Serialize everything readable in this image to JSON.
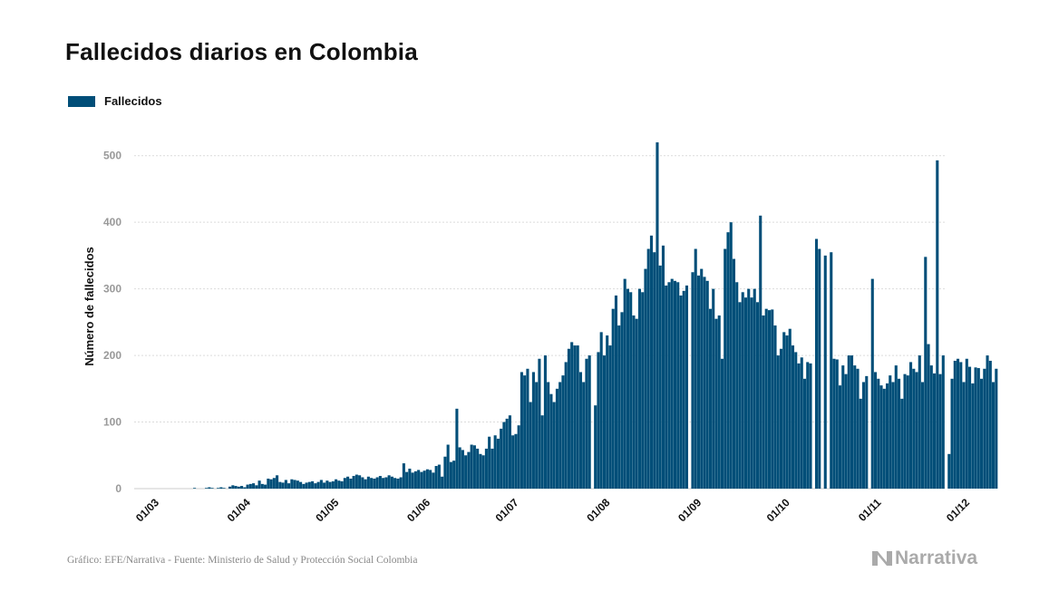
{
  "chart_data": {
    "type": "bar",
    "title": "Fallecidos diarios en Colombia",
    "ylabel": "Número de fallecidos",
    "xlabel": "",
    "ylim": [
      0,
      550
    ],
    "yticks": [
      0,
      100,
      200,
      300,
      400,
      500
    ],
    "grid": true,
    "legend_position": "top-left",
    "x_start": "2020-03-01",
    "x_end": "2020-12-01",
    "xticks": [
      "01/03",
      "01/04",
      "01/05",
      "01/06",
      "01/07",
      "01/08",
      "01/09",
      "01/10",
      "01/11",
      "01/12"
    ],
    "series": [
      {
        "name": "Fallecidos",
        "color": "#004e78",
        "start_date": "2020-03-16",
        "values": [
          0,
          0,
          0,
          0,
          0,
          1,
          0,
          0,
          0,
          1,
          2,
          1,
          0,
          1,
          2,
          1,
          0,
          3,
          5,
          4,
          3,
          4,
          2,
          6,
          7,
          8,
          5,
          12,
          7,
          6,
          15,
          14,
          16,
          20,
          10,
          9,
          13,
          8,
          14,
          13,
          12,
          10,
          7,
          9,
          10,
          11,
          8,
          10,
          13,
          9,
          12,
          10,
          11,
          14,
          12,
          11,
          16,
          18,
          15,
          19,
          21,
          20,
          17,
          14,
          18,
          16,
          15,
          17,
          19,
          16,
          17,
          20,
          18,
          16,
          15,
          17,
          38,
          25,
          30,
          24,
          26,
          28,
          25,
          27,
          29,
          28,
          24,
          34,
          36,
          18,
          48,
          66,
          40,
          42,
          120,
          62,
          58,
          50,
          55,
          66,
          65,
          60,
          52,
          50,
          60,
          78,
          60,
          80,
          75,
          90,
          100,
          105,
          110,
          80,
          82,
          95,
          175,
          170,
          180,
          130,
          175,
          160,
          195,
          110,
          200,
          160,
          142,
          130,
          150,
          160,
          170,
          190,
          210,
          220,
          215,
          215,
          175,
          160,
          195,
          200,
          0,
          125,
          205,
          235,
          200,
          230,
          215,
          270,
          290,
          245,
          265,
          315,
          300,
          295,
          260,
          255,
          300,
          295,
          330,
          360,
          380,
          355,
          520,
          335,
          365,
          305,
          310,
          315,
          312,
          310,
          290,
          297,
          305,
          0,
          325,
          360,
          320,
          330,
          318,
          312,
          270,
          300,
          255,
          260,
          195,
          360,
          385,
          400,
          345,
          310,
          280,
          295,
          287,
          300,
          287,
          300,
          280,
          410,
          260,
          270,
          268,
          269,
          245,
          200,
          210,
          235,
          230,
          240,
          215,
          205,
          188,
          197,
          165,
          190,
          188,
          0,
          375,
          360,
          0,
          350,
          0,
          355,
          195,
          194,
          155,
          185,
          172,
          200,
          200,
          185,
          180,
          135,
          160,
          169,
          0,
          315,
          175,
          165,
          155,
          150,
          158,
          170,
          160,
          185,
          165,
          135,
          172,
          170,
          190,
          180,
          175,
          200,
          160,
          348,
          217,
          185,
          173,
          493,
          172,
          200,
          0,
          52,
          165,
          192,
          195,
          190,
          160,
          195,
          183,
          158,
          182,
          181,
          165,
          180,
          200,
          192,
          160,
          180
        ]
      }
    ]
  },
  "legend": {
    "label": "Fallecidos"
  },
  "footer": {
    "source": "Gráfico: EFE/Narrativa - Fuente: Ministerio de Salud y Protección Social Colombia",
    "brand": "Narrativa"
  }
}
